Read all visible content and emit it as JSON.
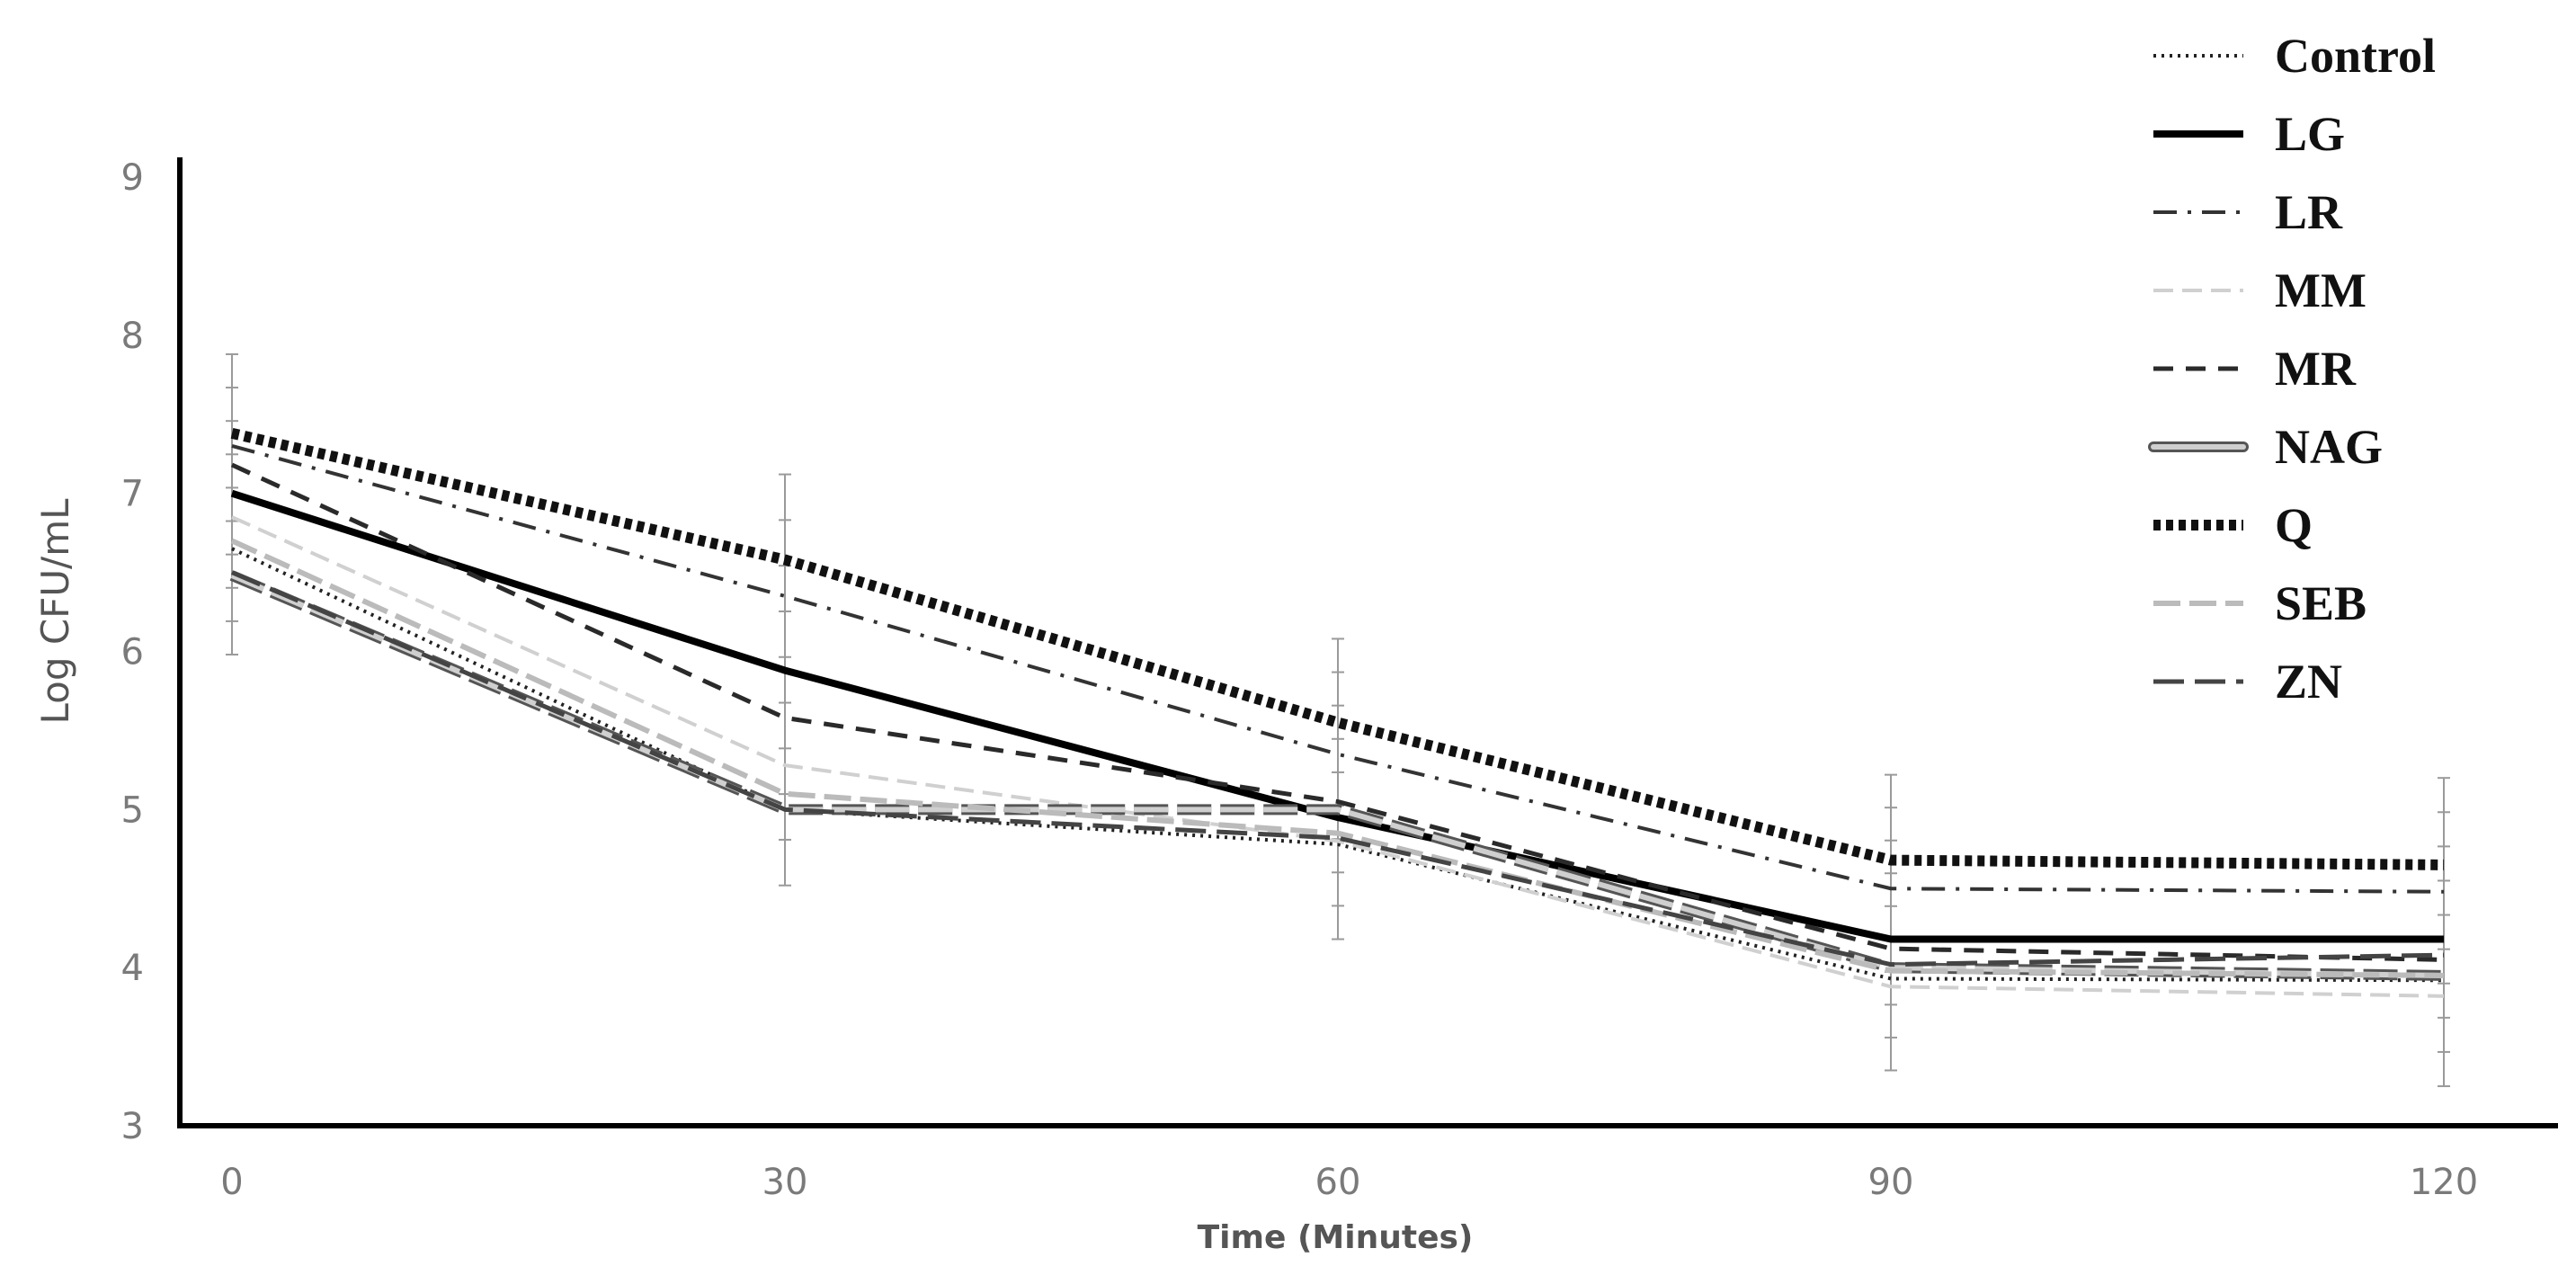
{
  "chart_data": {
    "type": "line",
    "title": "",
    "xlabel": "Time (Minutes)",
    "ylabel": "Log CFU/mL",
    "x": [
      0,
      30,
      60,
      90,
      120
    ],
    "xlim": [
      0,
      120
    ],
    "ylim": [
      3,
      9
    ],
    "yticks": [
      3,
      4,
      5,
      6,
      7,
      8,
      9
    ],
    "grid": false,
    "legend_position": "top-right",
    "series": [
      {
        "name": "Control",
        "values": [
          6.65,
          5.0,
          4.78,
          3.93,
          3.92
        ],
        "color": "#222222"
      },
      {
        "name": "LG",
        "values": [
          7.0,
          5.88,
          4.95,
          4.18,
          4.18
        ],
        "color": "#000000"
      },
      {
        "name": "LR",
        "values": [
          7.3,
          6.35,
          5.35,
          4.5,
          4.48
        ],
        "color": "#333333"
      },
      {
        "name": "MM",
        "values": [
          6.85,
          5.28,
          4.8,
          3.88,
          3.82
        ],
        "color": "#d0d0d0"
      },
      {
        "name": "MR",
        "values": [
          7.18,
          5.58,
          5.05,
          4.12,
          4.05
        ],
        "color": "#2a2a2a"
      },
      {
        "name": "NAG",
        "values": [
          6.48,
          5.0,
          5.0,
          4.0,
          3.95
        ],
        "color": "#888888"
      },
      {
        "name": "Q",
        "values": [
          7.38,
          6.58,
          5.55,
          4.68,
          4.65
        ],
        "color": "#111111"
      },
      {
        "name": "SEB",
        "values": [
          6.7,
          5.1,
          4.85,
          3.98,
          3.95
        ],
        "color": "#bbbbbb"
      },
      {
        "name": "ZN",
        "values": [
          6.5,
          5.0,
          4.82,
          4.02,
          4.08
        ],
        "color": "#444444"
      }
    ],
    "error_bars": [
      {
        "x": 0,
        "low": 5.98,
        "high": 7.88
      },
      {
        "x": 30,
        "low": 4.52,
        "high": 7.12
      },
      {
        "x": 60,
        "low": 4.18,
        "high": 6.08
      },
      {
        "x": 90,
        "low": 3.35,
        "high": 5.22
      },
      {
        "x": 120,
        "low": 3.25,
        "high": 5.2
      }
    ]
  }
}
